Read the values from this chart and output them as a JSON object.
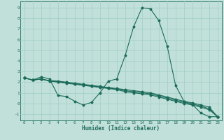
{
  "bg_color": "#c2e0da",
  "grid_color": "#9fcec6",
  "line_color": "#1a6b5a",
  "marker_color": "#1a6b5a",
  "xlabel": "Humidex (Indice chaleur)",
  "xlim": [
    -0.5,
    23.5
  ],
  "ylim": [
    -1.6,
    9.6
  ],
  "xticks": [
    0,
    1,
    2,
    3,
    4,
    5,
    6,
    7,
    8,
    9,
    10,
    11,
    12,
    13,
    14,
    15,
    16,
    17,
    18,
    19,
    20,
    21,
    22,
    23
  ],
  "yticks": [
    -1,
    0,
    1,
    2,
    3,
    4,
    5,
    6,
    7,
    8,
    9
  ],
  "line1_x": [
    0,
    1,
    2,
    3,
    4,
    5,
    6,
    7,
    8,
    9,
    10,
    11,
    12,
    13,
    14,
    15,
    16,
    17,
    18,
    19,
    20,
    21,
    22,
    23
  ],
  "line1_y": [
    2.4,
    2.2,
    2.5,
    2.3,
    0.75,
    0.65,
    0.2,
    -0.15,
    0.1,
    1.0,
    2.1,
    2.3,
    4.5,
    7.2,
    9.0,
    8.9,
    7.8,
    5.4,
    1.7,
    0.2,
    -0.1,
    -0.9,
    -1.25,
    -1.25
  ],
  "line2_x": [
    0,
    1,
    2,
    3,
    4,
    5,
    6,
    7,
    8,
    9,
    10,
    11,
    12,
    13,
    14,
    15,
    16,
    17,
    18,
    19,
    20,
    21,
    22,
    23
  ],
  "line2_y": [
    2.4,
    2.2,
    2.3,
    2.15,
    2.1,
    2.0,
    1.9,
    1.8,
    1.7,
    1.6,
    1.5,
    1.4,
    1.3,
    1.2,
    1.1,
    1.0,
    0.8,
    0.6,
    0.4,
    0.2,
    0.05,
    -0.15,
    -0.35,
    -1.25
  ],
  "line3_x": [
    0,
    1,
    2,
    3,
    4,
    5,
    6,
    7,
    8,
    9,
    10,
    11,
    12,
    13,
    14,
    15,
    16,
    17,
    18,
    19,
    20,
    21,
    22,
    23
  ],
  "line3_y": [
    2.4,
    2.2,
    2.3,
    2.1,
    2.05,
    1.95,
    1.85,
    1.75,
    1.65,
    1.55,
    1.45,
    1.35,
    1.2,
    1.1,
    1.0,
    0.9,
    0.7,
    0.5,
    0.3,
    0.1,
    -0.05,
    -0.25,
    -0.5,
    -1.25
  ],
  "line4_x": [
    0,
    1,
    2,
    3,
    4,
    5,
    6,
    7,
    8,
    9,
    10,
    11,
    12,
    13,
    14,
    15,
    16,
    17,
    18,
    19,
    20,
    21,
    22,
    23
  ],
  "line4_y": [
    2.4,
    2.2,
    2.3,
    2.1,
    2.0,
    1.9,
    1.8,
    1.7,
    1.6,
    1.5,
    1.4,
    1.3,
    1.1,
    1.0,
    0.9,
    0.8,
    0.6,
    0.4,
    0.2,
    0.0,
    -0.15,
    -0.35,
    -0.6,
    -1.25
  ]
}
